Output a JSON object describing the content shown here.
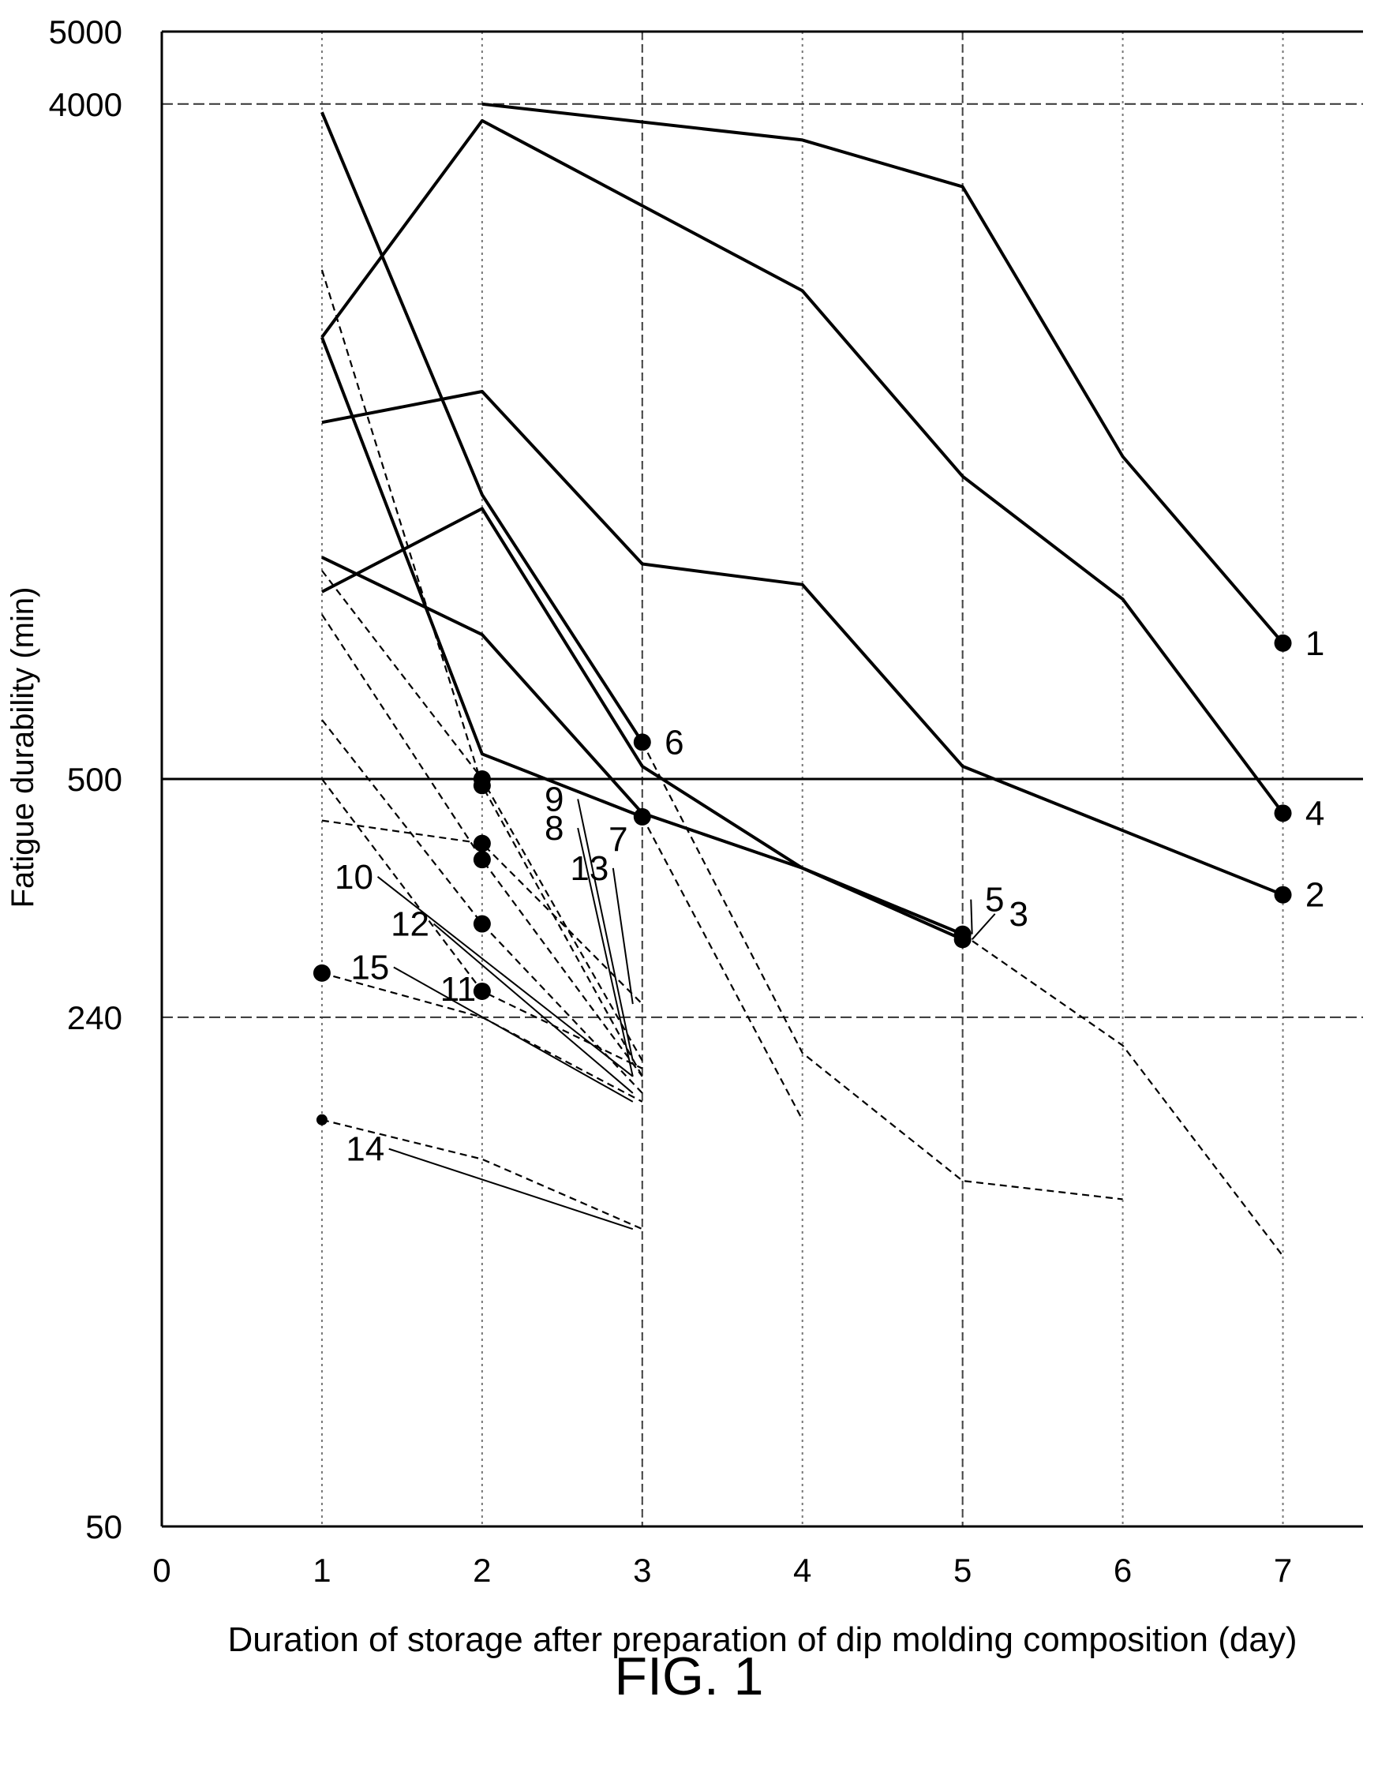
{
  "figure_label": "FIG. 1",
  "chart_data": {
    "type": "line",
    "xlabel": "Duration of storage after preparation of dip molding composition (day)",
    "ylabel": "Fatigue durability (min)",
    "x_ticks": [
      "0",
      "1",
      "2",
      "3",
      "4",
      "5",
      "6",
      "7"
    ],
    "y_ticks": [
      "5000",
      "4000",
      "500",
      "240",
      "50"
    ],
    "xlim": [
      0,
      7.5
    ],
    "ylim": [
      50,
      5000
    ],
    "y_scale": "log",
    "grid": "dashed lines at y=4000 and y=240, solid line at y=500, dotted vertical lines at x=1..7",
    "series": [
      {
        "name": "1",
        "style": "solid",
        "x": [
          2,
          4,
          5,
          6,
          7
        ],
        "y": [
          4000,
          3580,
          3100,
          1350,
          760
        ]
      },
      {
        "name": "2",
        "style": "solid",
        "x": [
          1,
          2,
          3,
          4,
          5,
          7
        ],
        "y": [
          1500,
          1650,
          970,
          910,
          520,
          350
        ]
      },
      {
        "name": "3",
        "style": "solid",
        "x": [
          1,
          2,
          3,
          4,
          5
        ],
        "y": [
          890,
          1150,
          520,
          380,
          305
        ]
      },
      {
        "name": "4",
        "style": "solid",
        "x": [
          1,
          2,
          4,
          5,
          6,
          7
        ],
        "y": [
          1950,
          3800,
          2250,
          1270,
          870,
          450
        ]
      },
      {
        "name": "5",
        "style": "solid",
        "x": [
          1,
          2,
          3,
          4,
          5
        ],
        "y": [
          990,
          780,
          450,
          380,
          310
        ]
      },
      {
        "name": "6",
        "style": "solid",
        "x": [
          1,
          2,
          3
        ],
        "y": [
          3900,
          1200,
          560
        ]
      },
      {
        "name": "7",
        "style": "solid",
        "x": [
          1,
          2,
          3
        ],
        "y": [
          1950,
          540,
          445
        ]
      },
      {
        "name": "8",
        "style": "dashed",
        "x": [
          1,
          2,
          3
        ],
        "y": [
          2400,
          490,
          200
        ]
      },
      {
        "name": "9",
        "style": "dashed",
        "x": [
          1,
          2,
          3
        ],
        "y": [
          950,
          500,
          210
        ]
      },
      {
        "name": "10",
        "style": "dashed",
        "x": [
          1,
          2,
          3
        ],
        "y": [
          830,
          390,
          200
        ]
      },
      {
        "name": "11",
        "style": "dashed",
        "x": [
          1,
          2,
          3
        ],
        "y": [
          500,
          260,
          205
        ]
      },
      {
        "name": "12",
        "style": "dashed",
        "x": [
          1,
          2,
          3
        ],
        "y": [
          600,
          320,
          190
        ]
      },
      {
        "name": "13",
        "style": "dashed",
        "x": [
          1,
          2,
          3
        ],
        "y": [
          440,
          410,
          250
        ]
      },
      {
        "name": "14",
        "style": "dashed",
        "x": [
          1,
          2,
          3
        ],
        "y": [
          175,
          155,
          125
        ]
      },
      {
        "name": "15",
        "style": "dashed",
        "x": [
          1,
          2,
          3
        ],
        "y": [
          275,
          240,
          185
        ]
      },
      {
        "name": "",
        "style": "dashed",
        "x": [
          3,
          4,
          5,
          6
        ],
        "y": [
          560,
          215,
          145,
          137
        ]
      },
      {
        "name": "",
        "style": "dashed",
        "x": [
          3,
          4
        ],
        "y": [
          445,
          175
        ]
      },
      {
        "name": "",
        "style": "dashed",
        "x": [
          5,
          6,
          7
        ],
        "y": [
          310,
          220,
          115
        ]
      }
    ],
    "markers": [
      {
        "x": 7,
        "y": 760,
        "shape": "dot"
      },
      {
        "x": 7,
        "y": 350,
        "shape": "dot"
      },
      {
        "x": 5,
        "y": 305,
        "shape": "dot"
      },
      {
        "x": 7,
        "y": 450,
        "shape": "dot"
      },
      {
        "x": 5,
        "y": 310,
        "shape": "dot"
      },
      {
        "x": 3,
        "y": 560,
        "shape": "dot"
      },
      {
        "x": 3,
        "y": 445,
        "shape": "dot"
      },
      {
        "x": 2,
        "y": 490,
        "shape": "dot"
      },
      {
        "x": 2,
        "y": 500,
        "shape": "dot"
      },
      {
        "x": 2,
        "y": 390,
        "shape": "dot"
      },
      {
        "x": 2,
        "y": 260,
        "shape": "dot"
      },
      {
        "x": 2,
        "y": 320,
        "shape": "dot"
      },
      {
        "x": 2,
        "y": 410,
        "shape": "dot"
      },
      {
        "x": 1,
        "y": 175,
        "shape": "small-dot"
      },
      {
        "x": 1,
        "y": 275,
        "shape": "dot"
      }
    ],
    "annotations": [
      {
        "text": "1",
        "x": 7.2,
        "y": 760,
        "leader": false
      },
      {
        "text": "2",
        "x": 7.2,
        "y": 350,
        "leader": false
      },
      {
        "text": "3",
        "x": 5.35,
        "y": 330,
        "leader": true
      },
      {
        "text": "4",
        "x": 7.2,
        "y": 450,
        "leader": false
      },
      {
        "text": "5",
        "x": 5.2,
        "y": 345,
        "leader": true
      },
      {
        "text": "6",
        "x": 3.2,
        "y": 560,
        "leader": false
      },
      {
        "text": "7",
        "x": 2.85,
        "y": 415,
        "leader": false
      },
      {
        "text": "8",
        "x": 2.45,
        "y": 430,
        "leader": true
      },
      {
        "text": "9",
        "x": 2.45,
        "y": 470,
        "leader": true
      },
      {
        "text": "10",
        "x": 1.2,
        "y": 370,
        "leader": true
      },
      {
        "text": "11",
        "x": 1.85,
        "y": 262,
        "leader": false
      },
      {
        "text": "12",
        "x": 1.55,
        "y": 320,
        "leader": true
      },
      {
        "text": "13",
        "x": 2.67,
        "y": 380,
        "leader": true
      },
      {
        "text": "14",
        "x": 1.27,
        "y": 160,
        "leader": true
      },
      {
        "text": "15",
        "x": 1.3,
        "y": 280,
        "leader": true
      }
    ]
  }
}
